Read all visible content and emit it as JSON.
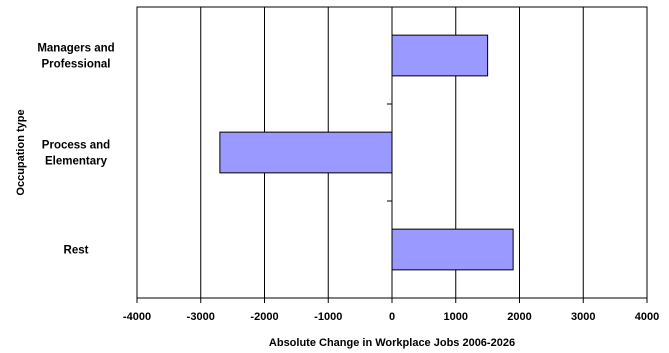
{
  "chart_data": {
    "type": "bar",
    "orientation": "horizontal",
    "title": "",
    "xlabel": "Absolute Change in Workplace Jobs 2006-2026",
    "ylabel": "Occupation type",
    "categories": [
      [
        "Managers and",
        "Professional"
      ],
      [
        "Process and",
        "Elementary"
      ],
      [
        "Rest"
      ]
    ],
    "values": [
      1500,
      -2700,
      1900
    ],
    "xlim": [
      -4000,
      4000
    ],
    "xticks": [
      "-4000",
      "-3000",
      "-2000",
      "-1000",
      "0",
      "1000",
      "2000",
      "3000",
      "4000"
    ],
    "grid": "vertical",
    "legend": "none",
    "bar_color": "#9999ff",
    "bar_edge_color": "#000000"
  }
}
